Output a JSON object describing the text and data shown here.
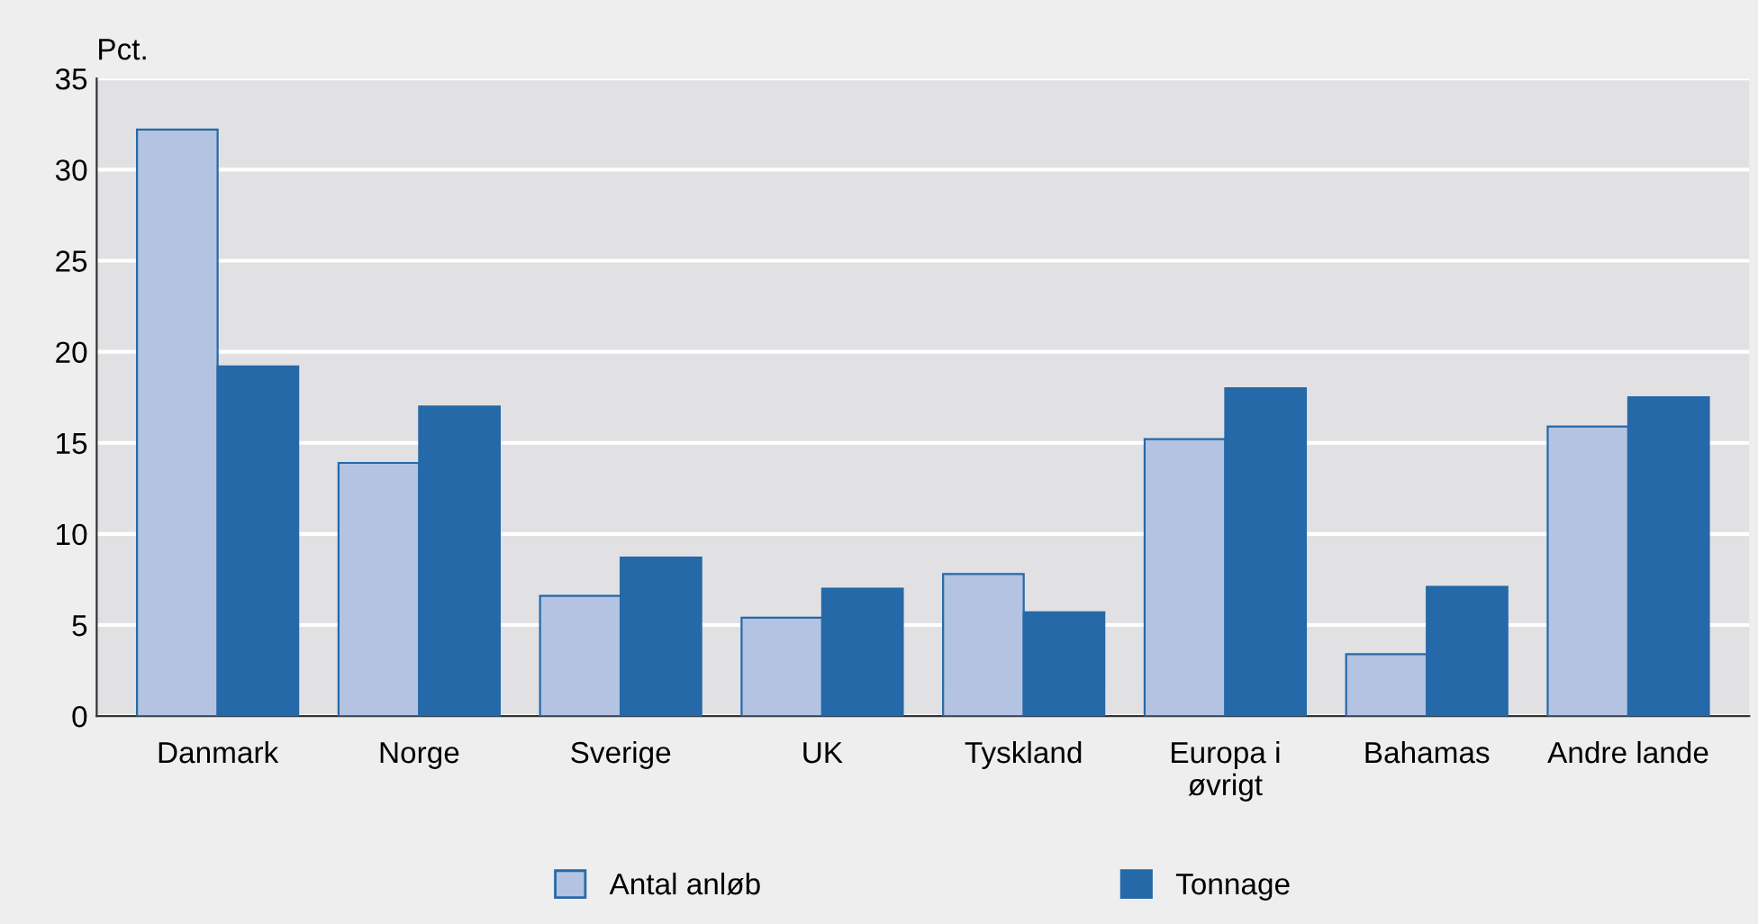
{
  "chart_data": {
    "type": "bar",
    "ylabel": "Pct.",
    "categories": [
      "Danmark",
      "Norge",
      "Sverige",
      "UK",
      "Tyskland",
      "Europa i\nøvrigt",
      "Bahamas",
      "Andre lande"
    ],
    "series": [
      {
        "name": "Antal anløb",
        "color": "#b4c3e1",
        "values": [
          32.2,
          13.9,
          6.6,
          5.4,
          7.8,
          15.2,
          3.4,
          15.9
        ]
      },
      {
        "name": "Tonnage",
        "color": "#2569a8",
        "values": [
          19.2,
          17.0,
          8.7,
          7.0,
          5.7,
          18.0,
          7.1,
          17.5
        ]
      }
    ],
    "ylim": [
      0,
      35
    ],
    "yticks": [
      0,
      5,
      10,
      15,
      20,
      25,
      30,
      35
    ],
    "grid": "y",
    "legend": "bottom"
  }
}
